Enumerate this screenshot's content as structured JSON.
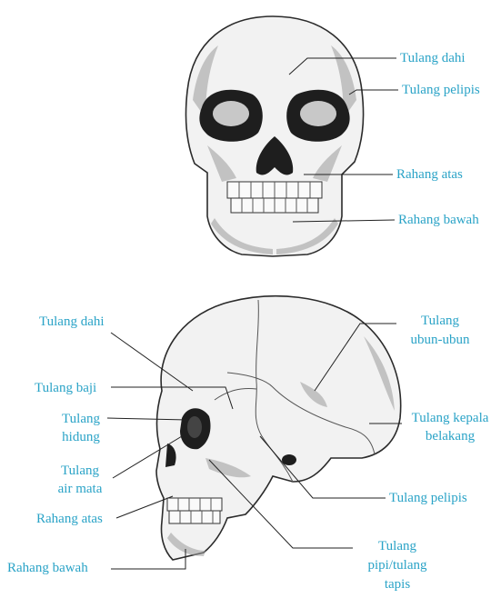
{
  "front_view": {
    "labels": {
      "frontal": "Tulang dahi",
      "temporal": "Tulang pelipis",
      "maxilla": "Rahang atas",
      "mandible": "Rahang bawah"
    }
  },
  "side_view": {
    "labels": {
      "frontal": "Tulang dahi",
      "sphenoid": "Tulang baji",
      "nasal_1": "Tulang",
      "nasal_2": "hidung",
      "lacrimal_1": "Tulang",
      "lacrimal_2": "air mata",
      "maxilla": "Rahang atas",
      "mandible": "Rahang bawah",
      "parietal_1": "Tulang",
      "parietal_2": "ubun-ubun",
      "occipital_1": "Tulang kepala",
      "occipital_2": "belakang",
      "temporal": "Tulang pelipis",
      "zygomatic_1": "Tulang",
      "zygomatic_2": "pipi/tulang",
      "zygomatic_3": "tapis"
    }
  }
}
